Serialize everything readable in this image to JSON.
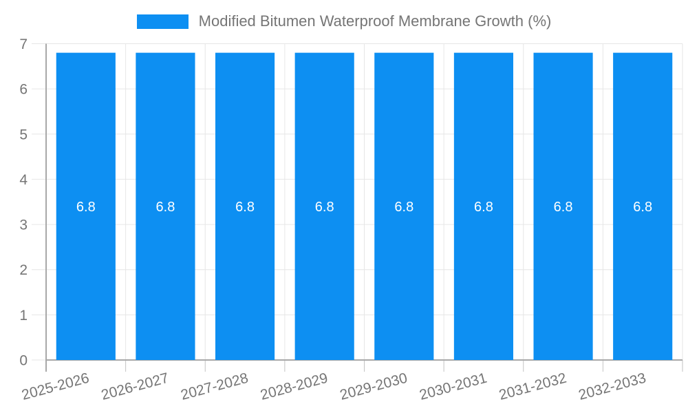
{
  "legend": {
    "label": "Modified Bitumen Waterproof Membrane Growth (%)"
  },
  "colors": {
    "bar": "#0d8ff2",
    "axis_text": "#757575",
    "grid_line": "#e6e6e6",
    "axis_line": "#a8a8a8",
    "tick_line": "#c2c2c2",
    "value_label": "#ffffff",
    "background": "#ffffff"
  },
  "chart_data": {
    "type": "bar",
    "title": "Modified Bitumen Waterproof Membrane Growth (%)",
    "categories": [
      "2025-2026",
      "2026-2027",
      "2027-2028",
      "2028-2029",
      "2029-2030",
      "2030-2031",
      "2031-2032",
      "2032-2033"
    ],
    "values": [
      6.8,
      6.8,
      6.8,
      6.8,
      6.8,
      6.8,
      6.8,
      6.8
    ],
    "value_labels": [
      "6.8",
      "6.8",
      "6.8",
      "6.8",
      "6.8",
      "6.8",
      "6.8",
      "6.8"
    ],
    "xlabel": "",
    "ylabel": "",
    "ylim": [
      0,
      7
    ],
    "yticks": [
      0,
      1,
      2,
      3,
      4,
      5,
      6,
      7
    ],
    "grid": true,
    "legend_position": "top",
    "bar_color": "#0d8ff2",
    "x_tick_rotation_deg": -15
  }
}
